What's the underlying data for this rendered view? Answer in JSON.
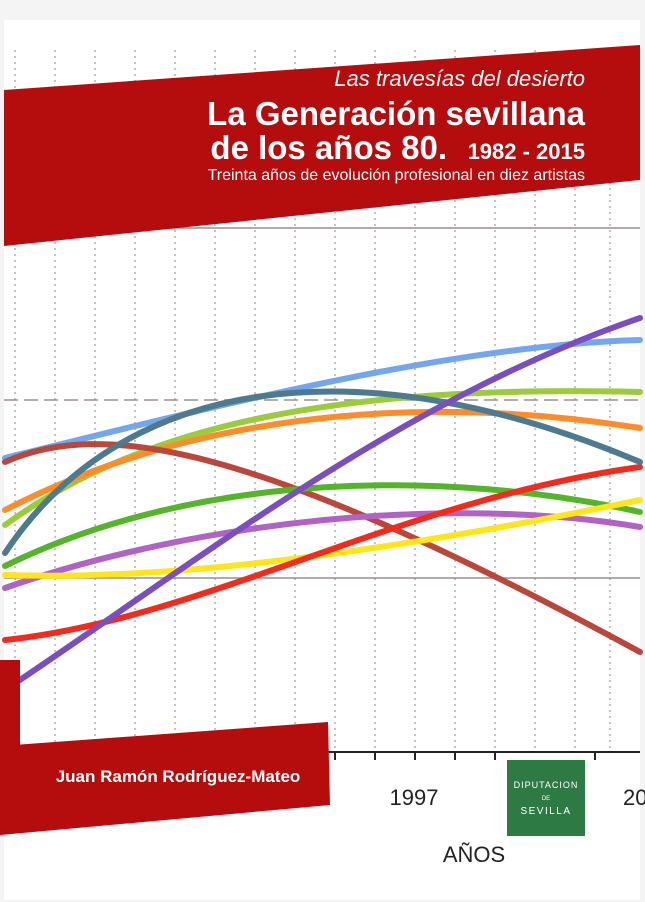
{
  "cover": {
    "series_title": "Las travesías del desierto",
    "title_line1": "La Generación sevillana",
    "title_line2": "de los años 80.",
    "years": "1982 - 2015",
    "subtitle": "Treinta años  de evolución profesional en diez artistas",
    "author": "Juan Ramón Rodríguez-Mateo",
    "axis_labels": [
      "1997",
      "20"
    ],
    "axis_title": "AÑOS",
    "publisher": {
      "line1": "DIPUTACION",
      "line2": "DE",
      "line3": "SEVILLA"
    }
  }
}
